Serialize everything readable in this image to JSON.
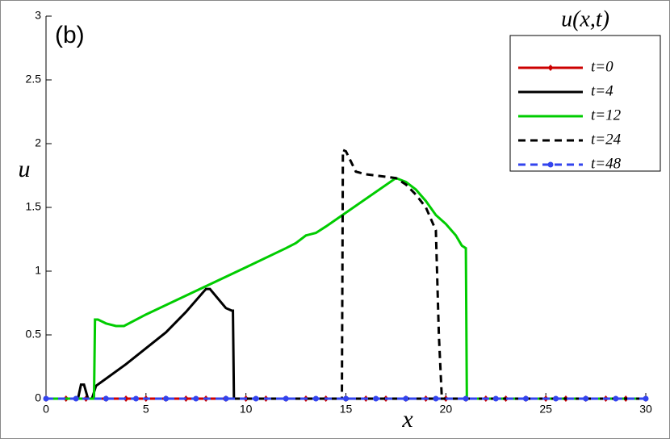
{
  "chart_data": {
    "type": "line",
    "annotation": "(b)",
    "legend_title": "u(x,t)",
    "xlabel": "x",
    "ylabel": "u",
    "xlim": [
      0,
      30
    ],
    "ylim": [
      0,
      3
    ],
    "xticks": [
      0,
      5,
      10,
      15,
      20,
      25,
      30
    ],
    "yticks": [
      0,
      0.5,
      1,
      1.5,
      2,
      2.5,
      3
    ],
    "legend": "upper right",
    "series": [
      {
        "name": "t=0",
        "color": "#cc0000",
        "dash": false,
        "marker": "diamond",
        "x": [
          0,
          1,
          2,
          3,
          4,
          5,
          6,
          7,
          8,
          9,
          10,
          11,
          12,
          13,
          14,
          15,
          16,
          17,
          18,
          19,
          20,
          21,
          22,
          23,
          24,
          25,
          26,
          27,
          28,
          29,
          30
        ],
        "values": [
          0,
          0,
          0,
          0,
          0,
          0,
          0,
          0,
          0,
          0,
          0,
          0,
          0,
          0,
          0,
          0,
          0,
          0,
          0,
          0,
          0,
          0,
          0,
          0,
          0,
          0,
          0,
          0,
          0,
          0,
          0
        ]
      },
      {
        "name": "t=4",
        "color": "#000000",
        "dash": false,
        "marker": "none",
        "x": [
          0,
          1.6,
          1.75,
          1.9,
          2.1,
          2.3,
          2.5,
          4,
          6,
          7,
          8,
          8.2,
          9,
          9.3,
          9.35,
          9.4,
          30
        ],
        "values": [
          0,
          0,
          0.11,
          0.11,
          0,
          0,
          0.1,
          0.27,
          0.52,
          0.68,
          0.86,
          0.86,
          0.71,
          0.69,
          0.69,
          0,
          0
        ]
      },
      {
        "name": "t=12",
        "color": "#00cc00",
        "dash": false,
        "marker": "none",
        "x": [
          0,
          2.4,
          2.45,
          2.6,
          3,
          3.5,
          3.9,
          5,
          10,
          12,
          12.5,
          13,
          13.5,
          14,
          17.5,
          18,
          18.5,
          19,
          19.5,
          20,
          20.5,
          20.8,
          21,
          21.05,
          30
        ],
        "values": [
          0,
          0,
          0.62,
          0.62,
          0.59,
          0.57,
          0.57,
          0.66,
          1.03,
          1.18,
          1.22,
          1.28,
          1.3,
          1.35,
          1.73,
          1.7,
          1.64,
          1.55,
          1.44,
          1.37,
          1.28,
          1.2,
          1.18,
          0,
          0
        ]
      },
      {
        "name": "t=24",
        "color": "#000000",
        "dash": true,
        "marker": "none",
        "x": [
          0,
          14.8,
          14.85,
          15,
          15.5,
          16,
          17,
          17.5,
          18,
          18.5,
          19,
          19.5,
          19.65,
          19.8,
          30
        ],
        "values": [
          0,
          0,
          1.95,
          1.94,
          1.78,
          1.76,
          1.74,
          1.73,
          1.68,
          1.6,
          1.5,
          1.32,
          0.5,
          0,
          0
        ]
      },
      {
        "name": "t=48",
        "color": "#3344ee",
        "dash": true,
        "marker": "circle",
        "x": [
          0,
          1.5,
          3,
          4.5,
          6,
          7.5,
          9,
          10.5,
          12,
          13.5,
          15,
          16.5,
          18,
          19.5,
          21,
          22.5,
          24,
          25.5,
          27,
          28.5,
          30
        ],
        "values": [
          0,
          0,
          0,
          0,
          0,
          0,
          0,
          0,
          0,
          0,
          0,
          0,
          0,
          0,
          0,
          0,
          0,
          0,
          0,
          0,
          0
        ]
      }
    ]
  }
}
